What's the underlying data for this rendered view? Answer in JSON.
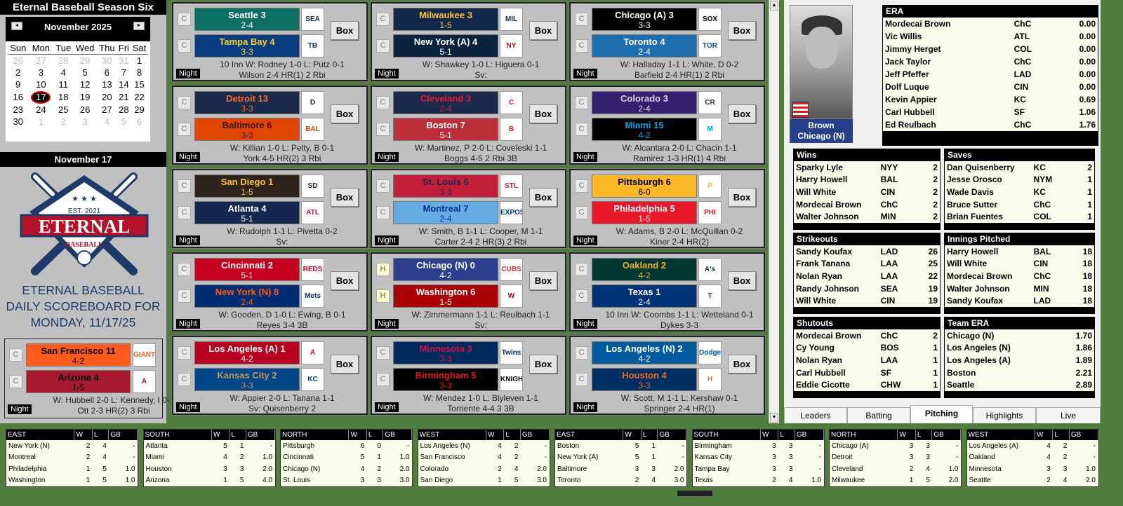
{
  "app": {
    "title": "Eternal Baseball Season Six"
  },
  "calendar": {
    "month_label": "November 2025",
    "prev_icon": "◄",
    "next_icon": "►",
    "weekdays": [
      "Sun",
      "Mon",
      "Tue",
      "Wed",
      "Thu",
      "Fri",
      "Sat"
    ],
    "weeks": [
      [
        "26",
        "27",
        "28",
        "29",
        "30",
        "31",
        "1"
      ],
      [
        "2",
        "3",
        "4",
        "5",
        "6",
        "7",
        "8"
      ],
      [
        "9",
        "10",
        "11",
        "12",
        "13",
        "14",
        "15"
      ],
      [
        "16",
        "17",
        "18",
        "19",
        "20",
        "21",
        "22"
      ],
      [
        "23",
        "24",
        "25",
        "26",
        "27",
        "28",
        "29"
      ],
      [
        "30",
        "1",
        "2",
        "3",
        "4",
        "5",
        "6"
      ]
    ],
    "selected": "17"
  },
  "date_bar": "November 17",
  "logo": {
    "est": "EST. 2021",
    "name": "ETERNAL",
    "sub": "BASEBALL",
    "colors": {
      "navy": "#1d3a6a",
      "red": "#b3122a"
    }
  },
  "blurb": [
    "ETERNAL BASEBALL",
    "DAILY SCOREBOARD FOR",
    "MONDAY, 11/17/25"
  ],
  "box_label": "Box",
  "night_label": "Night",
  "games": [
    {
      "away": {
        "status": "C",
        "name": "Seattle 3",
        "record": "2-4",
        "bg": "#0c6f63",
        "fg": "#ffffff",
        "logo": "SEA",
        "lc": "#0c2c56"
      },
      "home": {
        "status": "C",
        "name": "Tampa Bay 4",
        "record": "3-3",
        "bg": "#0a3c80",
        "fg": "#f5d130",
        "logo": "TB",
        "lc": "#092c5c"
      },
      "line1": "10 Inn W: Rodney 1-0  L: Putz 0-1",
      "line2": "Wilson 2-4 HR(1)  2 Rbi"
    },
    {
      "away": {
        "status": "C",
        "name": "Milwaukee 3",
        "record": "1-5",
        "bg": "#12284b",
        "fg": "#ffc52f",
        "logo": "MIL",
        "lc": "#12284b"
      },
      "home": {
        "status": "C",
        "name": "New York (A) 4",
        "record": "5-1",
        "bg": "#0c2340",
        "fg": "#ffffff",
        "logo": "NY",
        "lc": "#c4161c"
      },
      "line1": "W: Shawkey 1-0  L: Higuera 0-1",
      "line2": "Sv:"
    },
    {
      "away": {
        "status": "C",
        "name": "Chicago (A) 3",
        "record": "3-3",
        "bg": "#000000",
        "fg": "#ffffff",
        "logo": "SOX",
        "lc": "#000"
      },
      "home": {
        "status": "C",
        "name": "Toronto 4",
        "record": "2-4",
        "bg": "#1d6fb0",
        "fg": "#ffffff",
        "logo": "TOR",
        "lc": "#134a8e"
      },
      "line1": "W: Halladay 1-1  L: White, D 0-2",
      "line2": "Barfield 2-4 HR(1)  2 Rbi"
    },
    {
      "away": {
        "status": "C",
        "name": "Detroit 13",
        "record": "3-3",
        "bg": "#1b2a4a",
        "fg": "#fa6a2a",
        "logo": "D",
        "lc": "#0c2340"
      },
      "home": {
        "status": "C",
        "name": "Baltimore 6",
        "record": "3-3",
        "bg": "#df4601",
        "fg": "#3a1200",
        "logo": "BAL",
        "lc": "#df4601"
      },
      "line1": "W: Killian 1-0  L: Pelty, B 0-1",
      "line2": "York 4-5 HR(2)  3 Rbi"
    },
    {
      "away": {
        "status": "C",
        "name": "Cleveland 3",
        "record": "2-4",
        "bg": "#1b2a4a",
        "fg": "#e31937",
        "logo": "C",
        "lc": "#e31937"
      },
      "home": {
        "status": "C",
        "name": "Boston 7",
        "record": "5-1",
        "bg": "#bd3039",
        "fg": "#ffffff",
        "logo": "B",
        "lc": "#bd3039"
      },
      "line1": "W: Martinez, P 2-0  L: Coveleski 1-1",
      "line2": "Boggs 4-5  2 Rbi 3B"
    },
    {
      "away": {
        "status": "C",
        "name": "Colorado 3",
        "record": "2-4",
        "bg": "#33206f",
        "fg": "#d8d8e8",
        "logo": "CR",
        "lc": "#333"
      },
      "home": {
        "status": "C",
        "name": "Miami 15",
        "record": "4-2",
        "bg": "#000000",
        "fg": "#00a3e0",
        "logo": "M",
        "lc": "#00a3e0"
      },
      "line1": "W: Alcantara 2-0  L: Chacin 1-1",
      "line2": "Ramirez 1-3 HR(1)  4 Rbi"
    },
    {
      "away": {
        "status": "C",
        "name": "San Diego 1",
        "record": "1-5",
        "bg": "#2f241d",
        "fg": "#ffc425",
        "logo": "SD",
        "lc": "#2f241d"
      },
      "home": {
        "status": "C",
        "name": "Atlanta 4",
        "record": "5-1",
        "bg": "#13274f",
        "fg": "#ffffff",
        "logo": "ATL",
        "lc": "#ce1141"
      },
      "line1": "W: Rudolph 1-1  L: Pivetta 0-2",
      "line2": "Sv:"
    },
    {
      "away": {
        "status": "C",
        "name": "St. Louis 6",
        "record": "3-3",
        "bg": "#c41e3a",
        "fg": "#1b2a4a",
        "logo": "STL",
        "lc": "#c41e3a"
      },
      "home": {
        "status": "C",
        "name": "Montreal 7",
        "record": "2-4",
        "bg": "#67abe5",
        "fg": "#003087",
        "logo": "EXPOS",
        "lc": "#003087"
      },
      "line1": "W: Smith, B 1-1  L: Cooper, M 1-1",
      "line2": "Carter 2-4  2 HR(3)  2 Rbi"
    },
    {
      "away": {
        "status": "C",
        "name": "Pittsburgh 6",
        "record": "6-0",
        "bg": "#fdb827",
        "fg": "#000000",
        "logo": "P",
        "lc": "#fdb827"
      },
      "home": {
        "status": "C",
        "name": "Philadelphia 5",
        "record": "1-5",
        "bg": "#e81828",
        "fg": "#ffffff",
        "logo": "PHI",
        "lc": "#e81828"
      },
      "line1": "W: Adams, B 2-0  L: McQuillan 0-2",
      "line2": "Kiner 2-4 HR(2)"
    },
    {
      "away": {
        "status": "C",
        "name": "Cincinnati 2",
        "record": "5-1",
        "bg": "#c6011f",
        "fg": "#ffffff",
        "logo": "REDS",
        "lc": "#c6011f"
      },
      "home": {
        "status": "C",
        "name": "New York (N) 8",
        "record": "2-4",
        "bg": "#002d72",
        "fg": "#ff5910",
        "logo": "Mets",
        "lc": "#002d72"
      },
      "line1": "W: Gooden, D 1-0  L: Ewing, B 0-1",
      "line2": "Reyes 3-4 3B"
    },
    {
      "away": {
        "status": "H",
        "name": "Chicago (N) 0",
        "record": "4-2",
        "bg": "#2c3e8c",
        "fg": "#ffffff",
        "logo": "CUBS",
        "lc": "#cc3433"
      },
      "home": {
        "status": "H",
        "name": "Washington 6",
        "record": "1-5",
        "bg": "#ab0003",
        "fg": "#ffffff",
        "logo": "W",
        "lc": "#ab0003"
      },
      "line1": "W: Zimmermann 1-1  L: Reulbach 1-1",
      "line2": "Sv:"
    },
    {
      "away": {
        "status": "C",
        "name": "Oakland 2",
        "record": "4-2",
        "bg": "#003831",
        "fg": "#efb21e",
        "logo": "A's",
        "lc": "#003831"
      },
      "home": {
        "status": "C",
        "name": "Texas 1",
        "record": "2-4",
        "bg": "#003278",
        "fg": "#ffffff",
        "logo": "T",
        "lc": "#c0111f"
      },
      "line1": "10 Inn W: Coombs 1-1  L: Wetteland 0-1",
      "line2": "Dykes 3-3"
    },
    {
      "away": {
        "status": "C",
        "name": "Los Angeles (A) 1",
        "record": "4-2",
        "bg": "#ba0021",
        "fg": "#ffffff",
        "logo": "A",
        "lc": "#ba0021"
      },
      "home": {
        "status": "C",
        "name": "Kansas City 2",
        "record": "3-3",
        "bg": "#004687",
        "fg": "#bd9b60",
        "logo": "KC",
        "lc": "#004687"
      },
      "line1": "W: Appier 2-0  L: Tanana 1-1",
      "line2": "Sv: Quisenberry 2"
    },
    {
      "away": {
        "status": "C",
        "name": "Minnesota 3",
        "record": "3-3",
        "bg": "#002b5c",
        "fg": "#d31145",
        "logo": "Twins",
        "lc": "#002b5c"
      },
      "home": {
        "status": "C",
        "name": "Birmingham 5",
        "record": "3-3",
        "bg": "#000000",
        "fg": "#e8141b",
        "logo": "KNIGHTS",
        "lc": "#000"
      },
      "line1": "W: Mendez 1-0  L: Blyleven 1-1",
      "line2": "Torriente 4-4  3 3B"
    },
    {
      "away": {
        "status": "C",
        "name": "Los Angeles (N) 2",
        "record": "4-2",
        "bg": "#005a9c",
        "fg": "#ffffff",
        "logo": "Dodgers",
        "lc": "#005a9c"
      },
      "home": {
        "status": "C",
        "name": "Houston 4",
        "record": "3-3",
        "bg": "#002d62",
        "fg": "#eb6e1f",
        "logo": "H",
        "lc": "#eb6e1f"
      },
      "line1": "W: Scott, M 1-1  L: Kershaw 0-1",
      "line2": "Springer 2-4 HR(1)"
    }
  ],
  "extra_game": {
    "away": {
      "status": "C",
      "name": "San Francisco 11",
      "record": "4-2",
      "bg": "#fd5a1e",
      "fg": "#000000",
      "logo": "GIANTS",
      "lc": "#fd5a1e"
    },
    "home": {
      "status": "C",
      "name": "Arizona 4",
      "record": "1-5",
      "bg": "#a71930",
      "fg": "#000000",
      "logo": "A",
      "lc": "#a71930"
    },
    "line1": "W: Hubbell 2-0  L: Kennedy, I 0-1",
    "line2": "Ott 2-3 HR(2)  3 Rbi"
  },
  "scrollbar": {
    "up_icon": "▲",
    "down_icon": "▼"
  },
  "player_card": {
    "name": "Brown",
    "team": "Chicago (N)"
  },
  "leaders": {
    "era": {
      "title": "ERA",
      "rows": [
        [
          "Mordecai Brown",
          "ChC",
          "0.00"
        ],
        [
          "Vic Willis",
          "ATL",
          "0.00"
        ],
        [
          "Jimmy Herget",
          "COL",
          "0.00"
        ],
        [
          "Jack Taylor",
          "ChC",
          "0.00"
        ],
        [
          "Jeff Pfeffer",
          "LAD",
          "0.00"
        ],
        [
          "Dolf Luque",
          "CIN",
          "0.00"
        ],
        [
          "Kevin Appier",
          "KC",
          "0.69"
        ],
        [
          "Carl Hubbell",
          "SF",
          "1.06"
        ],
        [
          "Ed Reulbach",
          "ChC",
          "1.76"
        ]
      ]
    },
    "wins": {
      "title": "Wins",
      "rows": [
        [
          "Sparky Lyle",
          "NYY",
          "2"
        ],
        [
          "Harry Howell",
          "BAL",
          "2"
        ],
        [
          "Will White",
          "CIN",
          "2"
        ],
        [
          "Mordecai Brown",
          "ChC",
          "2"
        ],
        [
          "Walter Johnson",
          "MIN",
          "2"
        ]
      ]
    },
    "saves": {
      "title": "Saves",
      "rows": [
        [
          "Dan Quisenberry",
          "KC",
          "2"
        ],
        [
          "Jesse Orosco",
          "NYM",
          "1"
        ],
        [
          "Wade Davis",
          "KC",
          "1"
        ],
        [
          "Bruce Sutter",
          "ChC",
          "1"
        ],
        [
          "Brian Fuentes",
          "COL",
          "1"
        ]
      ]
    },
    "strikeouts": {
      "title": "Strikeouts",
      "rows": [
        [
          "Sandy Koufax",
          "LAD",
          "26"
        ],
        [
          "Frank Tanana",
          "LAA",
          "25"
        ],
        [
          "Nolan Ryan",
          "LAA",
          "22"
        ],
        [
          "Randy Johnson",
          "SEA",
          "19"
        ],
        [
          "Will White",
          "CIN",
          "19"
        ]
      ]
    },
    "innings": {
      "title": "Innings Pitched",
      "rows": [
        [
          "Harry Howell",
          "BAL",
          "18"
        ],
        [
          "Will White",
          "CIN",
          "18"
        ],
        [
          "Mordecai Brown",
          "ChC",
          "18"
        ],
        [
          "Walter Johnson",
          "MIN",
          "18"
        ],
        [
          "Sandy Koufax",
          "LAD",
          "18"
        ]
      ]
    },
    "shutouts": {
      "title": "Shutouts",
      "rows": [
        [
          "Mordecai Brown",
          "ChC",
          "2"
        ],
        [
          "Cy Young",
          "BOS",
          "1"
        ],
        [
          "Nolan Ryan",
          "LAA",
          "1"
        ],
        [
          "Carl Hubbell",
          "SF",
          "1"
        ],
        [
          "Eddie Cicotte",
          "CHW",
          "1"
        ]
      ]
    },
    "team_era": {
      "title": "Team ERA",
      "rows": [
        [
          "Chicago (N)",
          "",
          "1.70"
        ],
        [
          "Los Angeles (N)",
          "",
          "1.86"
        ],
        [
          "Los Angeles (A)",
          "",
          "1.89"
        ],
        [
          "Boston",
          "",
          "2.21"
        ],
        [
          "Seattle",
          "",
          "2.89"
        ]
      ]
    }
  },
  "tabs": [
    {
      "label": "Leaders"
    },
    {
      "label": "Batting"
    },
    {
      "label": "Pitching",
      "active": true
    },
    {
      "label": "Highlights"
    },
    {
      "label": "Live"
    }
  ],
  "standings": [
    {
      "division": "EAST",
      "cols": [
        "W",
        "L",
        "GB"
      ],
      "rows": [
        [
          "New York (N)",
          "2",
          "4",
          "-"
        ],
        [
          "Montreal",
          "2",
          "4",
          "-"
        ],
        [
          "Philadelphia",
          "1",
          "5",
          "1.0"
        ],
        [
          "Washington",
          "1",
          "5",
          "1.0"
        ]
      ]
    },
    {
      "division": "SOUTH",
      "cols": [
        "W",
        "L",
        "GB"
      ],
      "rows": [
        [
          "Atlanta",
          "5",
          "1",
          "-"
        ],
        [
          "Miami",
          "4",
          "2",
          "1.0"
        ],
        [
          "Houston",
          "3",
          "3",
          "2.0"
        ],
        [
          "Arizona",
          "1",
          "5",
          "4.0"
        ]
      ]
    },
    {
      "division": "NORTH",
      "cols": [
        "W",
        "L",
        "GB"
      ],
      "rows": [
        [
          "Pittsburgh",
          "6",
          "0",
          "-"
        ],
        [
          "Cincinnati",
          "5",
          "1",
          "1.0"
        ],
        [
          "Chicago (N)",
          "4",
          "2",
          "2.0"
        ],
        [
          "St. Louis",
          "3",
          "3",
          "3.0"
        ]
      ]
    },
    {
      "division": "WEST",
      "cols": [
        "W",
        "L",
        "GB"
      ],
      "rows": [
        [
          "Los Angeles (N)",
          "4",
          "2",
          "-"
        ],
        [
          "San Francisco",
          "4",
          "2",
          "-"
        ],
        [
          "Colorado",
          "2",
          "4",
          "2.0"
        ],
        [
          "San Diego",
          "1",
          "5",
          "3.0"
        ]
      ]
    },
    {
      "division": "EAST",
      "cols": [
        "W",
        "L",
        "GB"
      ],
      "rows": [
        [
          "Boston",
          "5",
          "1",
          "-"
        ],
        [
          "New York (A)",
          "5",
          "1",
          "-"
        ],
        [
          "Baltimore",
          "3",
          "3",
          "2.0"
        ],
        [
          "Toronto",
          "2",
          "4",
          "3.0"
        ]
      ]
    },
    {
      "division": "SOUTH",
      "cols": [
        "W",
        "L",
        "GB"
      ],
      "rows": [
        [
          "Birmingham",
          "3",
          "3",
          "-"
        ],
        [
          "Kansas City",
          "3",
          "3",
          "-"
        ],
        [
          "Tampa Bay",
          "3",
          "3",
          "-"
        ],
        [
          "Texas",
          "2",
          "4",
          "1.0"
        ]
      ]
    },
    {
      "division": "NORTH",
      "cols": [
        "W",
        "L",
        "GB"
      ],
      "rows": [
        [
          "Chicago (A)",
          "3",
          "3",
          "-"
        ],
        [
          "Detroit",
          "3",
          "3",
          "-"
        ],
        [
          "Cleveland",
          "2",
          "4",
          "1.0"
        ],
        [
          "Milwaukee",
          "1",
          "5",
          "2.0"
        ]
      ]
    },
    {
      "division": "WEST",
      "cols": [
        "W",
        "L",
        "GB"
      ],
      "rows": [
        [
          "Los Angeles (A)",
          "4",
          "2",
          "-"
        ],
        [
          "Oakland",
          "4",
          "2",
          "-"
        ],
        [
          "Minnesota",
          "3",
          "3",
          "1.0"
        ],
        [
          "Seattle",
          "2",
          "4",
          "2.0"
        ]
      ]
    }
  ]
}
